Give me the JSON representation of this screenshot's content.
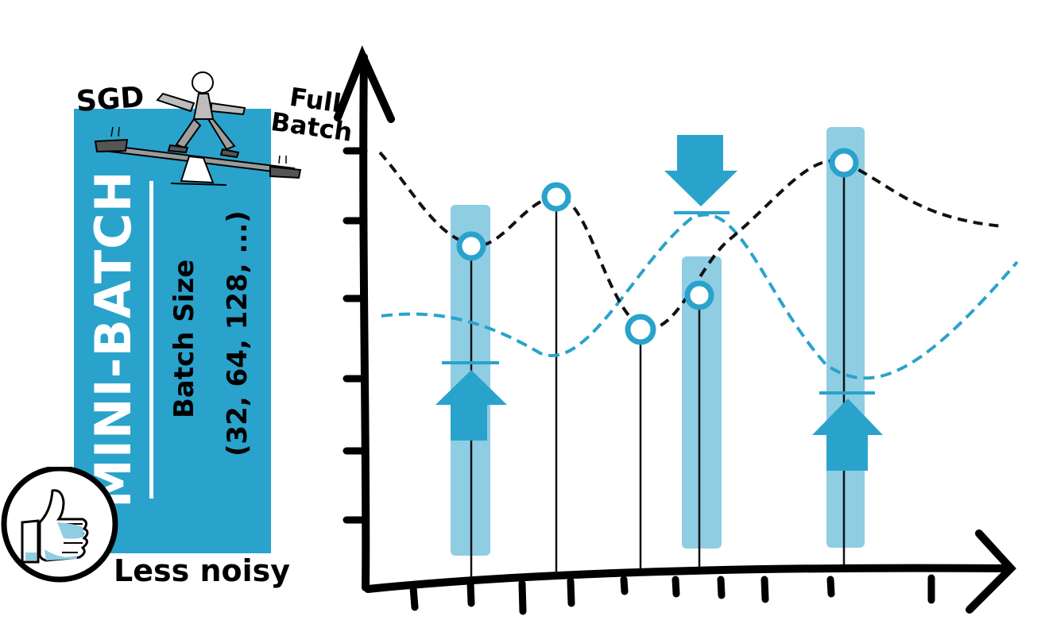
{
  "panel": {
    "title": "MINI-BATCH",
    "batch_size_label": "Batch Size",
    "batch_size_values": "(32, 64, 128, ...)",
    "seesaw": {
      "left_label": "SGD",
      "right_label_line1": "Full",
      "right_label_line2": "Batch"
    },
    "benefit": "Less noisy",
    "benefit_icon": "thumbs-up-icon"
  },
  "colors": {
    "accent": "#29a3cc",
    "band": "#8fcde3",
    "ink": "#000000"
  },
  "diagram": {
    "arrows": [
      "up",
      "down",
      "up"
    ]
  }
}
